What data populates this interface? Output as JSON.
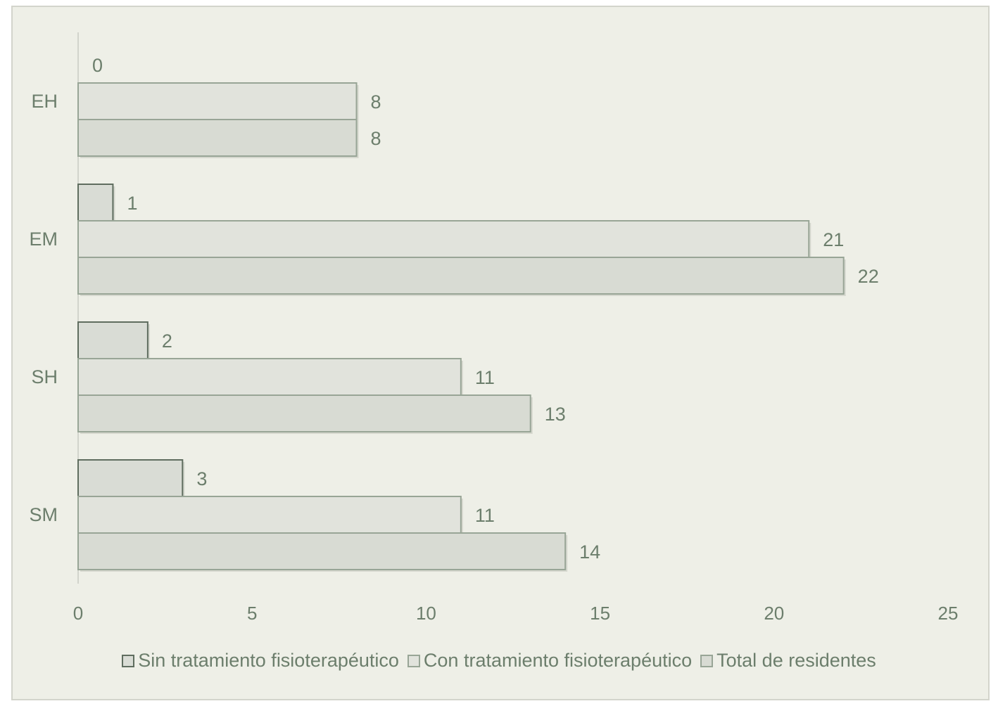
{
  "chart_data": {
    "type": "bar",
    "orientation": "horizontal",
    "categories": [
      "EH",
      "EM",
      "SH",
      "SM"
    ],
    "series": [
      {
        "name": "Sin tratamiento fisioterapéutico",
        "values": [
          0,
          1,
          2,
          3
        ],
        "color": "#d9dcd5",
        "border": "#5f6d5f"
      },
      {
        "name": "Con tratamiento fisioterapéutico",
        "values": [
          8,
          21,
          11,
          11
        ],
        "color": "#e1e3dc",
        "border": "#98a596"
      },
      {
        "name": "Total de residentes",
        "values": [
          8,
          22,
          13,
          14
        ],
        "color": "#d8dbd3",
        "border": "#98a596"
      }
    ],
    "xlim": [
      0,
      25
    ],
    "xticks": [
      "0",
      "5",
      "10",
      "15",
      "20",
      "25"
    ],
    "title": "",
    "xlabel": "",
    "ylabel": "",
    "grid": false,
    "legend_position": "bottom"
  }
}
